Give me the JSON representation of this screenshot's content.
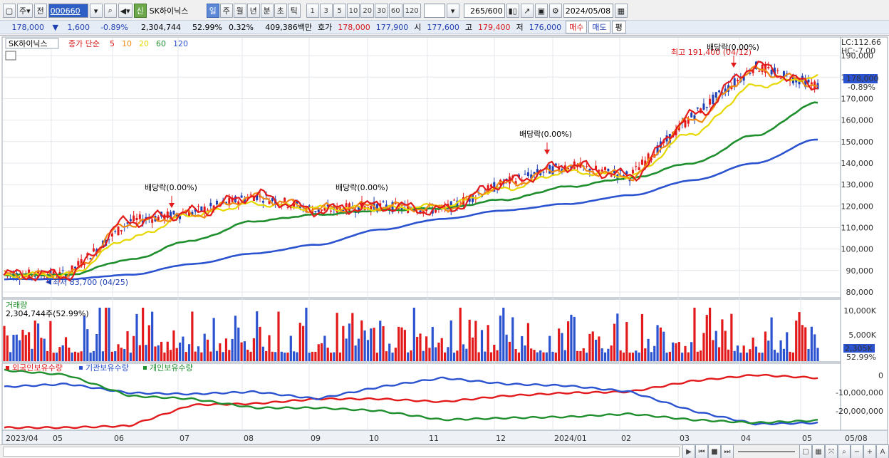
{
  "toolbar": {
    "period_selector": "주",
    "prev_label": "전",
    "stock_code": "000660",
    "credit_badge": "신",
    "stock_name": "SK하이닉스",
    "period_buttons": [
      "일",
      "주",
      "월",
      "년",
      "분",
      "초",
      "틱"
    ],
    "selected_period": "일",
    "interval_buttons": [
      "1",
      "3",
      "5",
      "10",
      "20",
      "30",
      "60",
      "120"
    ],
    "count_value": "265",
    "count_total": "/600",
    "date_value": "2024/05/08"
  },
  "quote": {
    "price": "178,000",
    "arrow": "▼",
    "change": "1,600",
    "change_rate": "-0.89%",
    "volume": "2,304,744",
    "volume_ratio": "52.99%",
    "turnover": "0.32%",
    "trade_value": "409,386백만",
    "ask_label": "호가",
    "ask1": "178,000",
    "ask2": "177,900",
    "open_label": "시",
    "open": "177,600",
    "high_label": "고",
    "high": "179,400",
    "low_label": "저",
    "low": "176,000",
    "buy_label": "매수",
    "sell_label": "매도",
    "eval_label": "평"
  },
  "legend": {
    "name": "SK하이닉스",
    "price_type": "종가 단순",
    "ma": [
      {
        "label": "5",
        "color": "#e31a1c"
      },
      {
        "label": "10",
        "color": "#f08a14"
      },
      {
        "label": "20",
        "color": "#e6d800"
      },
      {
        "label": "60",
        "color": "#1f8f2e"
      },
      {
        "label": "120",
        "color": "#2b53d0"
      }
    ]
  },
  "price_axis": {
    "ticks": [
      "190,000",
      "180,000",
      "170,000",
      "160,000",
      "150,000",
      "140,000",
      "130,000",
      "120,000",
      "110,000",
      "100,000",
      "90,000",
      "80,000"
    ],
    "current_tag": "178,000",
    "current_rate": "-0.89%",
    "lc": "LC:112.66",
    "hc": "HC:-7.00"
  },
  "annotations": {
    "high": "최고 191,400 (04/12)",
    "low": "최저 83,700 (04/25)",
    "dividend": "배당락(0.00%)"
  },
  "volume_panel": {
    "title": "거래량",
    "value": "2,304,744주(52.99%)",
    "ticks": [
      "10,000K",
      "5,000K"
    ],
    "current_tag": "2,305K",
    "current_rate": "52.99%"
  },
  "holdings_panel": {
    "series": [
      {
        "label": "외국인보유수량",
        "color": "#e31a1c"
      },
      {
        "label": "기관보유수량",
        "color": "#2b53d0"
      },
      {
        "label": "개인보유수량",
        "color": "#1f8f2e"
      }
    ],
    "ticks": [
      "0",
      "-10,000,000",
      "-20,000,000"
    ]
  },
  "time_axis": [
    "2023/04",
    "05",
    "06",
    "07",
    "08",
    "09",
    "10",
    "11",
    "12",
    "2024/01",
    "02",
    "03",
    "04",
    "05",
    "05/08"
  ],
  "chart_data": {
    "type": "line",
    "x": [
      "2023/04",
      "05",
      "06",
      "07",
      "08",
      "09",
      "10",
      "11",
      "12",
      "2024/01",
      "02",
      "03",
      "04",
      "05"
    ],
    "series": [
      {
        "name": "5",
        "values": [
          88000,
          88000,
          113000,
          117000,
          125000,
          118000,
          120000,
          118000,
          131000,
          139000,
          134000,
          162000,
          185000,
          176000
        ]
      },
      {
        "name": "10",
        "values": [
          88000,
          88000,
          112000,
          116000,
          124000,
          119000,
          120000,
          119000,
          130000,
          138000,
          134000,
          160000,
          183000,
          177000
        ]
      },
      {
        "name": "20",
        "values": [
          88000,
          88000,
          105000,
          116000,
          121000,
          119000,
          119000,
          120000,
          128000,
          136000,
          134000,
          154000,
          176000,
          180000
        ]
      },
      {
        "name": "60",
        "values": [
          88000,
          88000,
          95000,
          104000,
          113000,
          116000,
          118000,
          119000,
          123000,
          129000,
          133000,
          140000,
          153000,
          168000
        ]
      },
      {
        "name": "120",
        "values": [
          86000,
          86000,
          88000,
          93000,
          98000,
          102000,
          109000,
          114000,
          118000,
          121000,
          125000,
          132000,
          140000,
          151000
        ]
      }
    ],
    "ylim": [
      78000,
      196000
    ]
  }
}
